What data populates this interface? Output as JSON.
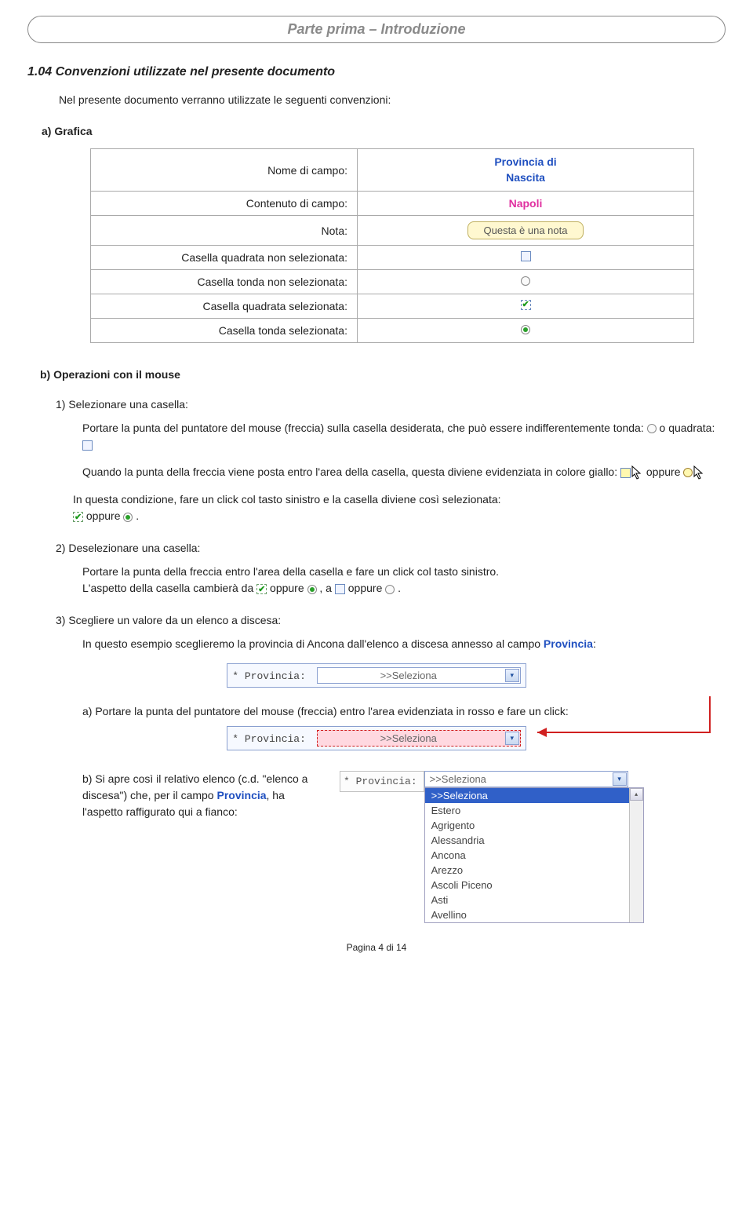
{
  "header_title": "Parte prima – Introduzione",
  "h2": "1.04  Convenzioni utilizzate nel presente documento",
  "intro": "Nel presente documento verranno utilizzate le seguenti convenzioni:",
  "sub_a": "a) Grafica",
  "table": {
    "r1l": "Nome di campo:",
    "r1v1": "Provincia di",
    "r1v2": "Nascita",
    "r2l": "Contenuto di campo:",
    "r2v": "Napoli",
    "r3l": "Nota:",
    "r3v": "Questa è una nota",
    "r4l": "Casella quadrata non selezionata:",
    "r5l": "Casella tonda non selezionata:",
    "r6l": "Casella quadrata selezionata:",
    "r7l": "Casella tonda selezionata:"
  },
  "sub_b": "b) Operazioni con il mouse",
  "m1_head": "1) Selezionare una casella:",
  "m1_p1a": "Portare la punta del puntatore del mouse (freccia) sulla casella desiderata, che può essere indifferentemente tonda: ",
  "m1_p1b": " o quadrata: ",
  "m1_p2a": "Quando la punta della freccia viene posta entro l'area della casella, questa diviene evidenziata in colore giallo: ",
  "m1_p2b": "   oppure  ",
  "m1_p3a": "In questa condizione, fare un click col tasto sinistro e la casella diviene così selezionata: ",
  "m1_p3b": " oppure  ",
  "m1_p3c": " .",
  "m2_head": "2) Deselezionare una casella:",
  "m2_p1": "Portare la punta della freccia entro l'area della casella e fare un click col tasto sinistro.",
  "m2_p2a": "L'aspetto della casella cambierà da  ",
  "m2_p2b": "  oppure ",
  "m2_p2c": " ,  a   ",
  "m2_p2d": "  oppure ",
  "m2_p2e": " .",
  "m3_head": "3)  Scegliere un valore da un elenco a discesa:",
  "m3_p1a": "In questo esempio sceglieremo la provincia di Ancona dall'elenco a discesa annesso al campo ",
  "m3_prov": "Provincia",
  "m3_p1b": ":",
  "dd_label": "* Provincia:",
  "dd_value": ">>Seleziona",
  "m3a": "a) Portare la punta del puntatore del mouse (freccia) entro l'area evidenziata in rosso e fare un click:",
  "m3b_a": "b)  Si apre così il relativo elenco (c.d. \"elenco a discesa\") che, per il campo ",
  "m3b_b": ", ha l'aspetto raffigurato qui a fianco:",
  "listbox": {
    "top": ">>Seleziona",
    "selected": ">>Seleziona",
    "options": [
      "Estero",
      "Agrigento",
      "Alessandria",
      "Ancona",
      "Arezzo",
      "Ascoli Piceno",
      "Asti",
      "Avellino"
    ]
  },
  "footer": "Pagina  4 di 14",
  "colors": {
    "field_blue": "#2050c0",
    "field_pink": "#e030a0",
    "note_bg": "#fff8d0",
    "note_border": "#c0b060",
    "highlight_bg": "#fff8b0",
    "red": "#d02020",
    "list_sel_bg": "#3060c8",
    "green_check": "#1a9a1a"
  },
  "typography": {
    "body_pt": 10.5,
    "title_pt": 13.5,
    "h2_pt": 12
  }
}
